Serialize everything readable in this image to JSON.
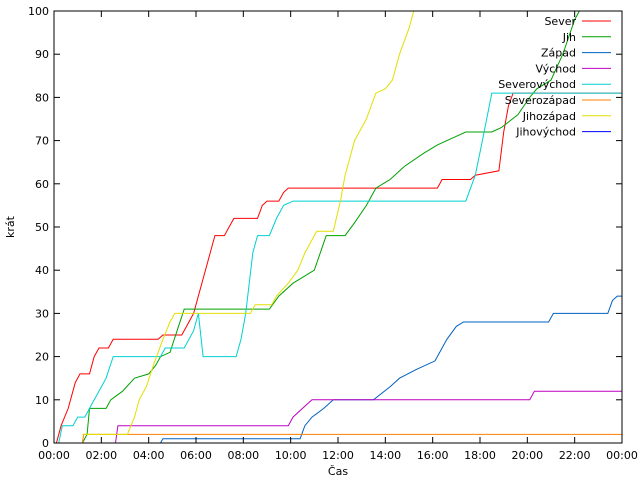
{
  "chart_data": {
    "type": "line",
    "title": "",
    "xlabel": "Čas",
    "ylabel": "krát",
    "xlim": [
      0,
      24
    ],
    "ylim": [
      0,
      100
    ],
    "x_ticks": [
      0,
      2,
      4,
      6,
      8,
      10,
      12,
      14,
      16,
      18,
      20,
      22,
      24
    ],
    "x_tick_labels": [
      "00:00",
      "02:00",
      "04:00",
      "06:00",
      "08:00",
      "10:00",
      "12:00",
      "14:00",
      "16:00",
      "18:00",
      "20:00",
      "22:00",
      "00:00"
    ],
    "y_ticks": [
      0,
      10,
      20,
      30,
      40,
      50,
      60,
      70,
      80,
      90,
      100
    ],
    "y_tick_labels": [
      "0",
      "10",
      "20",
      "30",
      "40",
      "50",
      "60",
      "70",
      "80",
      "90",
      "100"
    ],
    "grid": false,
    "legend_position": "top-right",
    "series": [
      {
        "name": "Sever",
        "color": "#ff0000",
        "points": [
          [
            0.1,
            0
          ],
          [
            0.3,
            4
          ],
          [
            0.6,
            8
          ],
          [
            0.9,
            14
          ],
          [
            1.1,
            16
          ],
          [
            1.5,
            16
          ],
          [
            1.7,
            20
          ],
          [
            1.9,
            22
          ],
          [
            2.3,
            22
          ],
          [
            2.5,
            24
          ],
          [
            4.4,
            24
          ],
          [
            4.6,
            25
          ],
          [
            5.4,
            25
          ],
          [
            5.7,
            28
          ],
          [
            5.9,
            30
          ],
          [
            6.2,
            36
          ],
          [
            6.6,
            44
          ],
          [
            6.8,
            48
          ],
          [
            7.2,
            48
          ],
          [
            7.4,
            50
          ],
          [
            7.6,
            52
          ],
          [
            8.6,
            52
          ],
          [
            8.8,
            55
          ],
          [
            9.0,
            56
          ],
          [
            9.5,
            56
          ],
          [
            9.7,
            58
          ],
          [
            9.9,
            59
          ],
          [
            16.2,
            59
          ],
          [
            16.4,
            61
          ],
          [
            17.6,
            61
          ],
          [
            17.8,
            62
          ],
          [
            18.8,
            63
          ],
          [
            19.0,
            72
          ],
          [
            19.2,
            78
          ],
          [
            19.4,
            81
          ],
          [
            21.2,
            81
          ],
          [
            21.5,
            81
          ],
          [
            24,
            81
          ]
        ]
      },
      {
        "name": "Jih",
        "color": "#00a000",
        "points": [
          [
            1.2,
            0
          ],
          [
            1.4,
            2
          ],
          [
            1.5,
            8
          ],
          [
            2.2,
            8
          ],
          [
            2.4,
            10
          ],
          [
            2.9,
            12
          ],
          [
            3.4,
            15
          ],
          [
            4.0,
            16
          ],
          [
            4.3,
            18
          ],
          [
            4.5,
            20
          ],
          [
            4.9,
            21
          ],
          [
            5.2,
            26
          ],
          [
            5.5,
            31
          ],
          [
            9.1,
            31
          ],
          [
            9.5,
            34
          ],
          [
            10.1,
            37
          ],
          [
            11.0,
            40
          ],
          [
            11.5,
            48
          ],
          [
            12.3,
            48
          ],
          [
            12.7,
            51
          ],
          [
            13.2,
            55
          ],
          [
            13.6,
            59
          ],
          [
            14.2,
            61
          ],
          [
            14.8,
            64
          ],
          [
            15.6,
            67
          ],
          [
            16.2,
            69
          ],
          [
            17.0,
            71
          ],
          [
            17.4,
            72
          ],
          [
            18.5,
            72
          ],
          [
            18.9,
            73
          ],
          [
            19.6,
            76
          ],
          [
            20.1,
            80
          ],
          [
            20.4,
            82
          ],
          [
            21.0,
            84
          ],
          [
            21.5,
            90
          ],
          [
            22.0,
            98
          ],
          [
            22.2,
            100
          ]
        ]
      },
      {
        "name": "Západ",
        "color": "#0060c0",
        "points": [
          [
            4.5,
            0
          ],
          [
            4.6,
            1
          ],
          [
            10.4,
            1
          ],
          [
            10.6,
            4
          ],
          [
            10.9,
            6
          ],
          [
            11.4,
            8
          ],
          [
            11.8,
            10
          ],
          [
            13.5,
            10
          ],
          [
            14.2,
            13
          ],
          [
            14.6,
            15
          ],
          [
            15.3,
            17
          ],
          [
            16.1,
            19
          ],
          [
            16.6,
            24
          ],
          [
            17.0,
            27
          ],
          [
            17.3,
            28
          ],
          [
            20.9,
            28
          ],
          [
            21.1,
            30
          ],
          [
            23.4,
            30
          ],
          [
            23.6,
            33
          ],
          [
            23.8,
            34
          ],
          [
            24,
            34
          ]
        ]
      },
      {
        "name": "Východ",
        "color": "#c000c0",
        "points": [
          [
            2.6,
            0
          ],
          [
            2.7,
            4
          ],
          [
            9.9,
            4
          ],
          [
            10.1,
            6
          ],
          [
            10.5,
            8
          ],
          [
            10.9,
            10
          ],
          [
            20.1,
            10
          ],
          [
            20.2,
            11
          ],
          [
            20.3,
            12
          ],
          [
            24,
            12
          ]
        ]
      },
      {
        "name": "Severovýchod",
        "color": "#00d0d0",
        "points": [
          [
            0.2,
            0
          ],
          [
            0.35,
            4
          ],
          [
            0.8,
            4
          ],
          [
            1.0,
            6
          ],
          [
            1.3,
            6
          ],
          [
            1.5,
            8
          ],
          [
            2.2,
            15
          ],
          [
            2.5,
            20
          ],
          [
            4.5,
            20
          ],
          [
            4.7,
            22
          ],
          [
            5.5,
            22
          ],
          [
            5.9,
            26
          ],
          [
            6.1,
            30
          ],
          [
            6.3,
            20
          ],
          [
            7.7,
            20
          ],
          [
            7.9,
            24
          ],
          [
            8.1,
            30
          ],
          [
            8.4,
            44
          ],
          [
            8.6,
            48
          ],
          [
            9.1,
            48
          ],
          [
            9.4,
            52
          ],
          [
            9.7,
            55
          ],
          [
            10.1,
            56
          ],
          [
            17.4,
            56
          ],
          [
            17.8,
            62
          ],
          [
            18.1,
            70
          ],
          [
            18.5,
            81
          ],
          [
            24,
            81
          ]
        ]
      },
      {
        "name": "Severozápad",
        "color": "#ff7f00",
        "points": [
          [
            1.2,
            0
          ],
          [
            1.25,
            2
          ],
          [
            2.6,
            2
          ],
          [
            24,
            2
          ]
        ]
      },
      {
        "name": "Jihozápad",
        "color": "#e0e000",
        "points": [
          [
            1.2,
            2
          ],
          [
            3.1,
            2
          ],
          [
            3.4,
            6
          ],
          [
            3.6,
            10
          ],
          [
            3.9,
            13
          ],
          [
            4.2,
            18
          ],
          [
            4.6,
            24
          ],
          [
            4.9,
            28
          ],
          [
            5.1,
            30
          ],
          [
            8.3,
            30
          ],
          [
            8.5,
            32
          ],
          [
            9.2,
            32
          ],
          [
            9.4,
            34
          ],
          [
            9.9,
            37
          ],
          [
            10.3,
            40
          ],
          [
            10.6,
            44
          ],
          [
            11.1,
            49
          ],
          [
            11.8,
            49
          ],
          [
            12.1,
            56
          ],
          [
            12.3,
            62
          ],
          [
            12.7,
            70
          ],
          [
            13.2,
            75
          ],
          [
            13.6,
            81
          ],
          [
            14.0,
            82
          ],
          [
            14.3,
            84
          ],
          [
            14.6,
            90
          ],
          [
            15.0,
            96
          ],
          [
            15.2,
            100
          ]
        ]
      },
      {
        "name": "Jihovýchod",
        "color": "#0000ff",
        "points": []
      }
    ]
  }
}
